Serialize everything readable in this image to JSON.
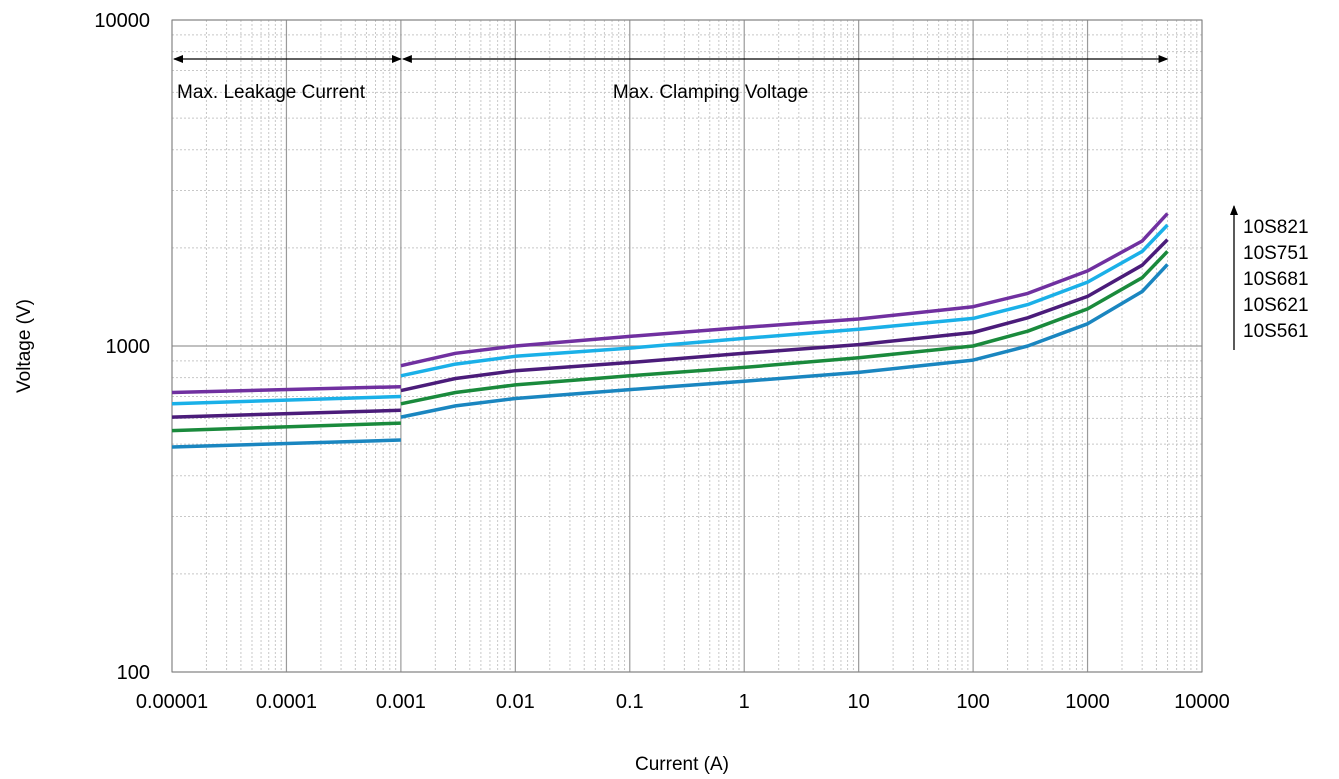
{
  "chart_data": {
    "type": "line",
    "title": "",
    "xlabel": "Current (A)",
    "ylabel": "Voltage (V)",
    "x_scale": "log",
    "y_scale": "log",
    "xlim": [
      1e-05,
      10000
    ],
    "ylim": [
      100,
      10000
    ],
    "x_ticks": [
      "0.00001",
      "0.0001",
      "0.001",
      "0.01",
      "0.1",
      "1",
      "10",
      "100",
      "1000",
      "10000"
    ],
    "y_ticks": [
      "100",
      "1000",
      "10000"
    ],
    "grid": true,
    "annotations": [
      {
        "text": "Max. Leakage Current",
        "x_range": [
          1e-05,
          0.001
        ]
      },
      {
        "text": "Max. Clamping Voltage",
        "x_range": [
          0.001,
          5000
        ]
      }
    ],
    "legend": {
      "placement": "right",
      "entries": [
        "10S821",
        "10S751",
        "10S681",
        "10S621",
        "10S561"
      ],
      "arrow": "up"
    },
    "series": [
      {
        "name": "10S821",
        "color": "#7030a0",
        "leakage": {
          "x": [
            1e-05,
            0.001
          ],
          "y": [
            720,
            750
          ]
        },
        "clamping": {
          "x": [
            0.001,
            0.003,
            0.01,
            0.1,
            1,
            10,
            100,
            300,
            1000,
            3000,
            5000
          ],
          "y": [
            870,
            950,
            1000,
            1070,
            1140,
            1210,
            1320,
            1450,
            1700,
            2100,
            2550
          ]
        }
      },
      {
        "name": "10S751",
        "color": "#1ab0e8",
        "leakage": {
          "x": [
            1e-05,
            0.001
          ],
          "y": [
            665,
            700
          ]
        },
        "clamping": {
          "x": [
            0.001,
            0.003,
            0.01,
            0.1,
            1,
            10,
            100,
            300,
            1000,
            3000,
            5000
          ],
          "y": [
            810,
            880,
            930,
            985,
            1055,
            1125,
            1215,
            1340,
            1570,
            1950,
            2350
          ]
        }
      },
      {
        "name": "10S681",
        "color": "#4b1c7a",
        "leakage": {
          "x": [
            1e-05,
            0.001
          ],
          "y": [
            605,
            635
          ]
        },
        "clamping": {
          "x": [
            0.001,
            0.003,
            0.01,
            0.1,
            1,
            10,
            100,
            300,
            1000,
            3000,
            5000
          ],
          "y": [
            730,
            795,
            840,
            890,
            950,
            1010,
            1100,
            1220,
            1420,
            1770,
            2120
          ]
        }
      },
      {
        "name": "10S621",
        "color": "#1a8a3c",
        "leakage": {
          "x": [
            1e-05,
            0.001
          ],
          "y": [
            550,
            580
          ]
        },
        "clamping": {
          "x": [
            0.001,
            0.003,
            0.01,
            0.1,
            1,
            10,
            100,
            300,
            1000,
            3000,
            5000
          ],
          "y": [
            665,
            720,
            760,
            810,
            860,
            920,
            1000,
            1110,
            1300,
            1620,
            1950
          ]
        }
      },
      {
        "name": "10S561",
        "color": "#1a86c0",
        "leakage": {
          "x": [
            1e-05,
            0.001
          ],
          "y": [
            490,
            515
          ]
        },
        "clamping": {
          "x": [
            0.001,
            0.003,
            0.01,
            0.1,
            1,
            10,
            100,
            300,
            1000,
            3000,
            5000
          ],
          "y": [
            605,
            655,
            690,
            735,
            780,
            830,
            905,
            1000,
            1170,
            1470,
            1780
          ]
        }
      }
    ]
  }
}
